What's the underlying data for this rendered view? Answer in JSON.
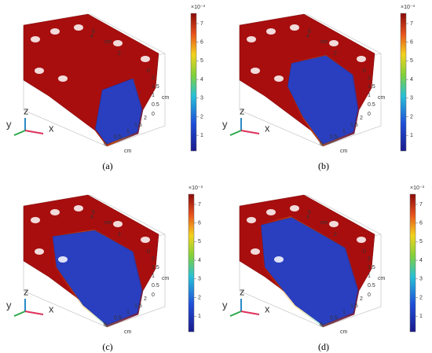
{
  "panels": [
    {
      "caption": "(a)",
      "colorbar": {
        "exponent": "×10⁻³",
        "ticks": [
          "7",
          "6",
          "5",
          "4",
          "3",
          "2",
          "1"
        ]
      },
      "axis_labels": {
        "length": [
          "6",
          "4",
          "2",
          "0"
        ],
        "length_unit": "cm",
        "height": [
          "2",
          "1.5",
          "1",
          "0.5",
          "0"
        ],
        "height_unit": "cm",
        "width": [
          "0",
          "0.5",
          "1",
          "1.5",
          "2"
        ],
        "width_unit": "cm"
      },
      "triad": [
        "z",
        "y",
        "x"
      ]
    },
    {
      "caption": "(b)",
      "colorbar": {
        "exponent": "×10⁻³",
        "ticks": [
          "7",
          "6",
          "5",
          "4",
          "3",
          "2",
          "1"
        ]
      },
      "axis_labels": {
        "length": [
          "6",
          "4",
          "2",
          "0"
        ],
        "length_unit": "cm",
        "height": [
          "2",
          "1.5",
          "1",
          "0.5",
          "0"
        ],
        "height_unit": "cm",
        "width": [
          "0",
          "0.5",
          "1",
          "1.5",
          "2"
        ],
        "width_unit": "cm"
      },
      "triad": [
        "z",
        "y",
        "x"
      ]
    },
    {
      "caption": "(c)",
      "colorbar": {
        "exponent": "×10⁻³",
        "ticks": [
          "7",
          "6",
          "5",
          "4",
          "3",
          "2",
          "1"
        ]
      },
      "axis_labels": {
        "length": [
          "6",
          "4",
          "2",
          "0"
        ],
        "length_unit": "cm",
        "height": [
          "2",
          "1.5",
          "1",
          "0.5",
          "0"
        ],
        "height_unit": "cm",
        "width": [
          "0",
          "0.5",
          "1",
          "1.5",
          "2"
        ],
        "width_unit": "cm"
      },
      "triad": [
        "z",
        "y",
        "x"
      ]
    },
    {
      "caption": "(d)",
      "colorbar": {
        "exponent": "×10⁻³",
        "ticks": [
          "7",
          "6",
          "5",
          "4",
          "3",
          "2",
          "1"
        ]
      },
      "axis_labels": {
        "length": [
          "6",
          "4",
          "2",
          "0"
        ],
        "length_unit": "cm",
        "height": [
          "2",
          "1.5",
          "1",
          "0.5",
          "0"
        ],
        "height_unit": "cm",
        "width": [
          "0",
          "0.5",
          "1",
          "1.5",
          "2"
        ],
        "width_unit": "cm"
      },
      "triad": [
        "z",
        "y",
        "x"
      ]
    }
  ]
}
